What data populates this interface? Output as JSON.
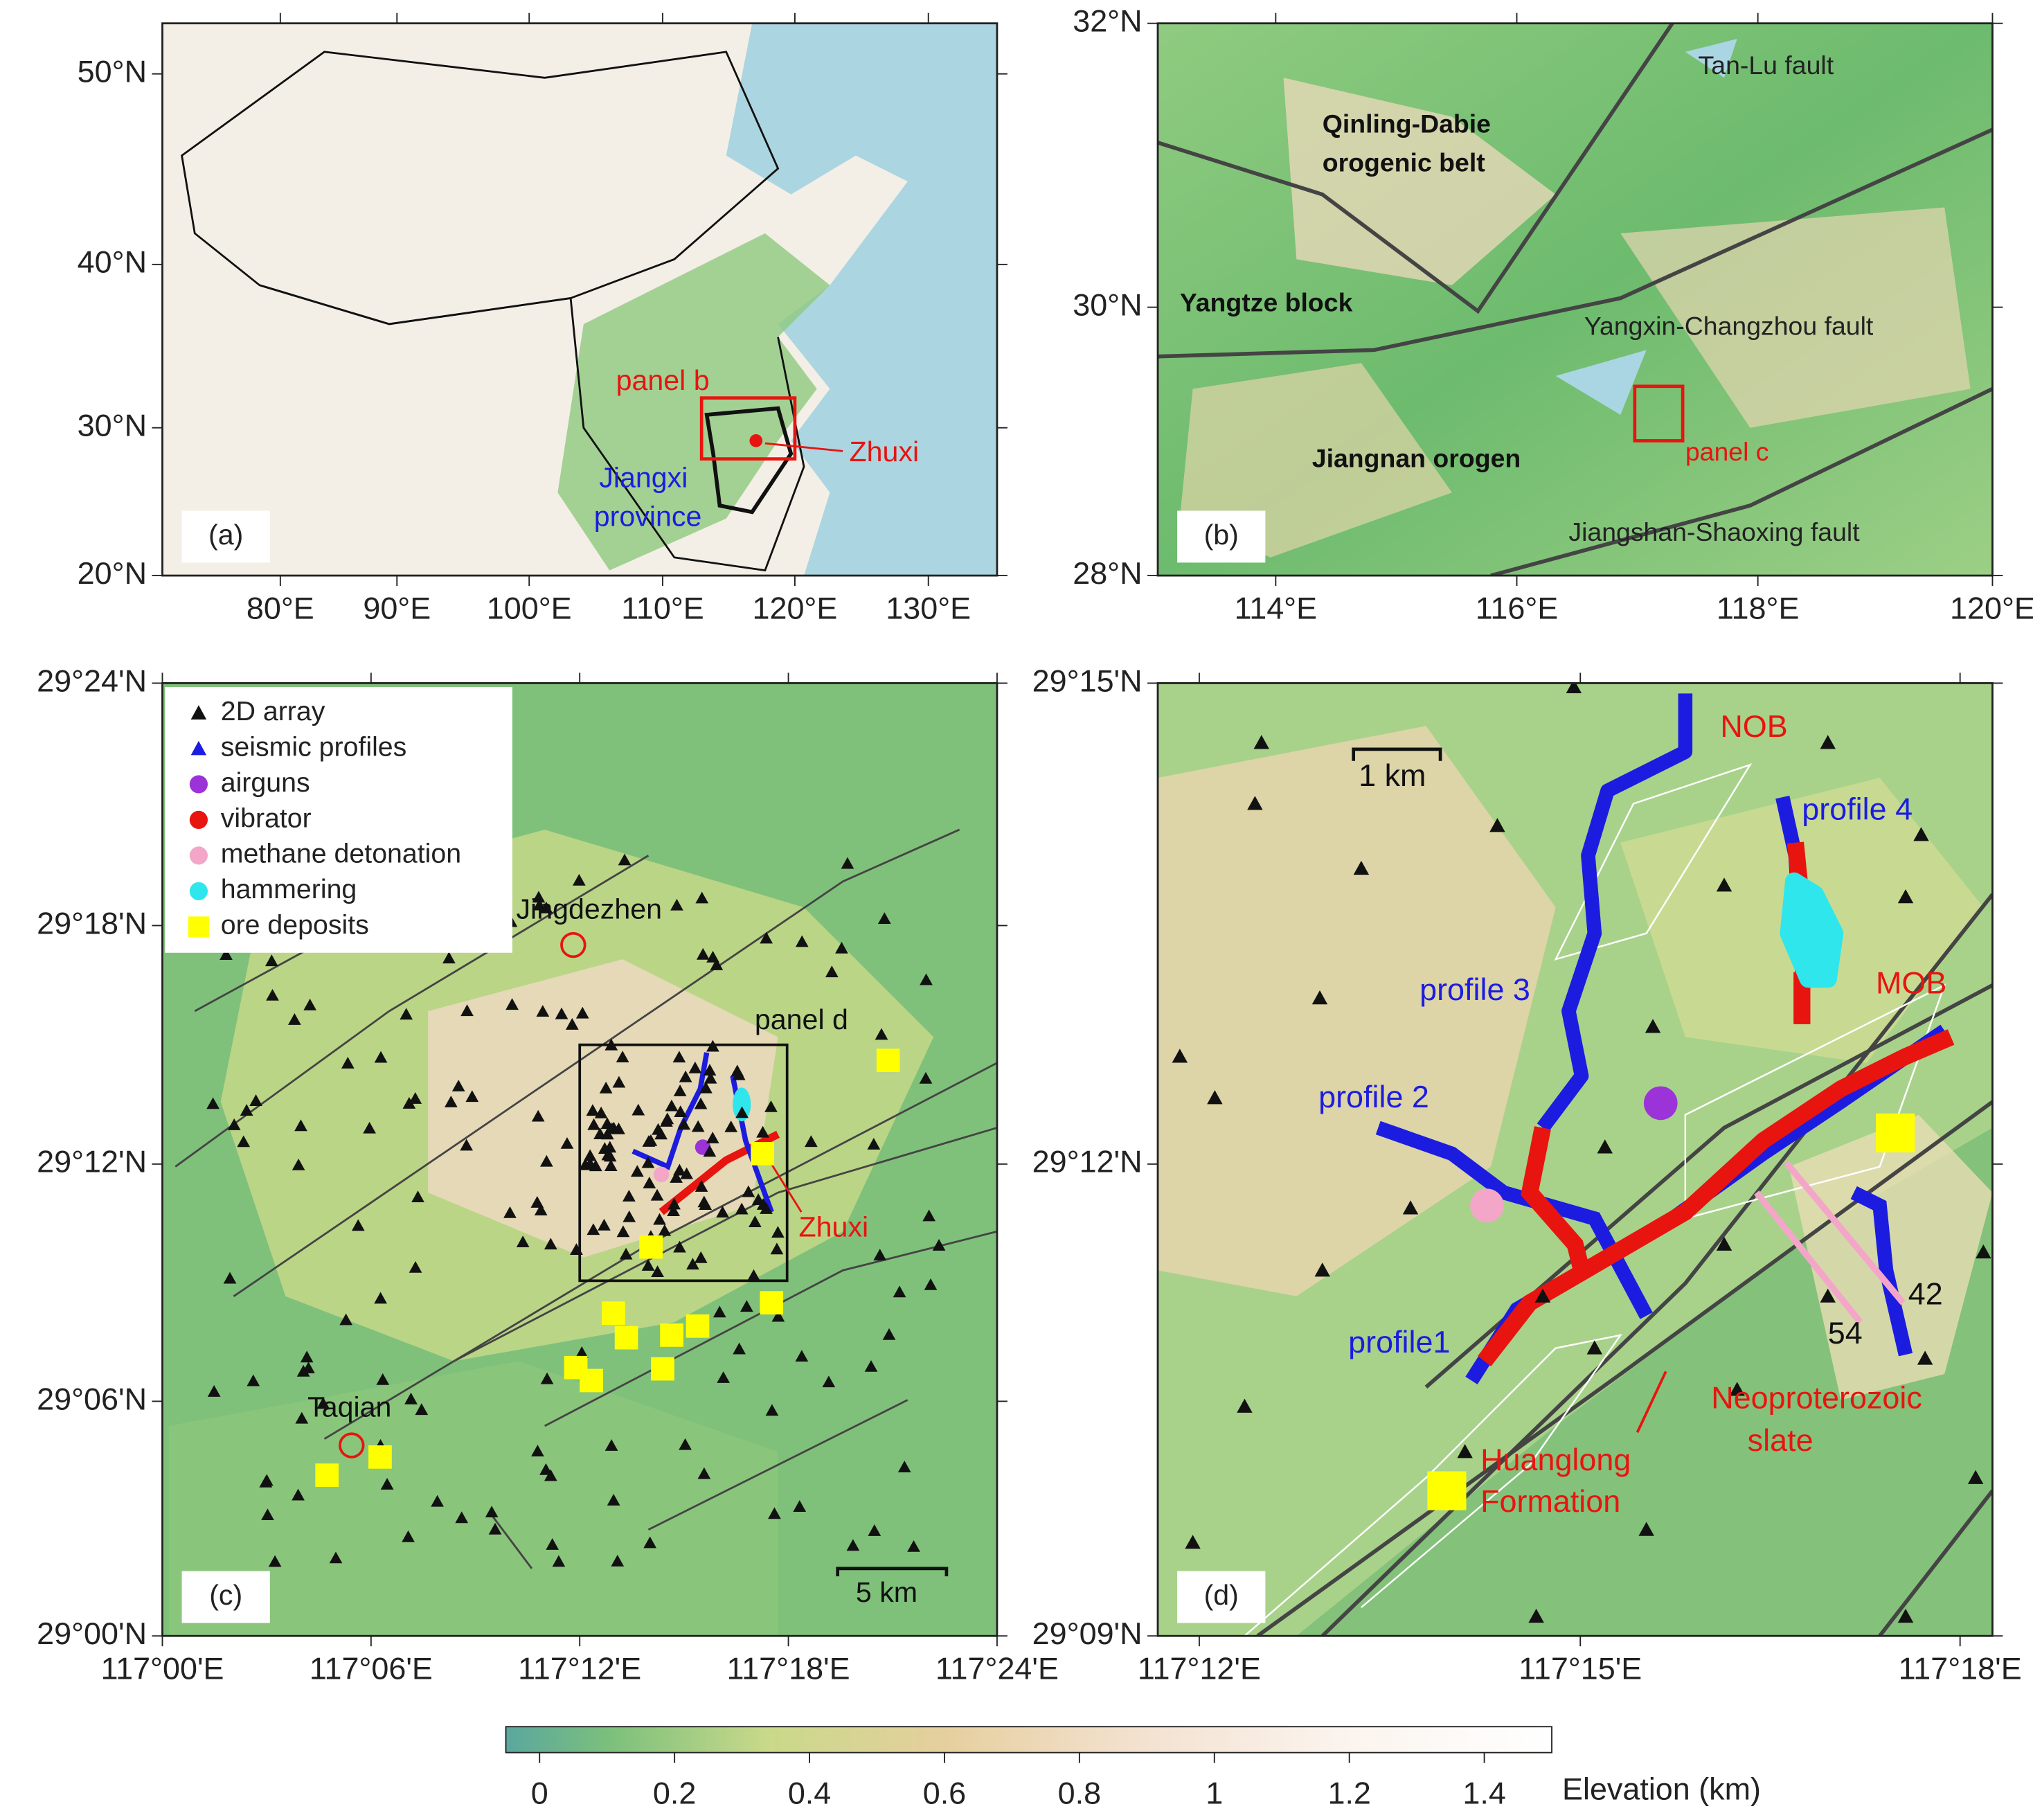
{
  "panels": [
    {
      "label": "(a)",
      "xticks": [
        "80°E",
        "90°E",
        "100°E",
        "110°E",
        "120°E",
        "130°E"
      ],
      "yticks": [
        "50°N",
        "40°N",
        "30°N",
        "20°N"
      ],
      "annotations": [
        "panel b",
        "Zhuxi",
        "Jiangxi",
        "province"
      ]
    },
    {
      "label": "(b)",
      "xticks": [
        "114°E",
        "116°E",
        "118°E",
        "120°E"
      ],
      "yticks": [
        "32°N",
        "30°N",
        "28°N"
      ],
      "annotations": [
        "Tan-Lu fault",
        "Qinling-Dabie",
        "orogenic belt",
        "Yangtze block",
        "Yangxin-Changzhou fault",
        "Jiangnan orogen",
        "panel c",
        "Jiangshan-Shaoxing  fault"
      ]
    },
    {
      "label": "(c)",
      "xticks": [
        "117°00'E",
        "117°06'E",
        "117°12'E",
        "117°18'E",
        "117°24'E"
      ],
      "yticks": [
        "29°24'N",
        "29°18'N",
        "29°12'N",
        "29°06'N",
        "29°00'N"
      ],
      "annotations": [
        "Jingdezhen",
        "panel d",
        "Zhuxi",
        "Taqian",
        "5 km"
      ],
      "legend": [
        "2D array",
        "seismic profiles",
        "airguns",
        "vibrator",
        "methane detonation",
        "hammering",
        "ore deposits"
      ]
    },
    {
      "label": "(d)",
      "xticks": [
        "117°12'E",
        "117°15'E",
        "117°18'E"
      ],
      "yticks": [
        "29°15'N",
        "29°12'N",
        "29°09'N"
      ],
      "annotations": [
        "NOB",
        "1 km",
        "profile 4",
        "profile 3",
        "MOB",
        "profile 2",
        "42",
        "54",
        "profile1",
        "Neoproterozoic",
        "slate",
        "Huanglong",
        "Formation"
      ]
    }
  ],
  "colorbar": {
    "title": "Elevation (km)",
    "range": [
      -0.05,
      1.5
    ],
    "ticks": [
      0,
      0.2,
      0.4,
      0.6,
      0.8,
      1,
      1.2,
      1.4
    ]
  }
}
